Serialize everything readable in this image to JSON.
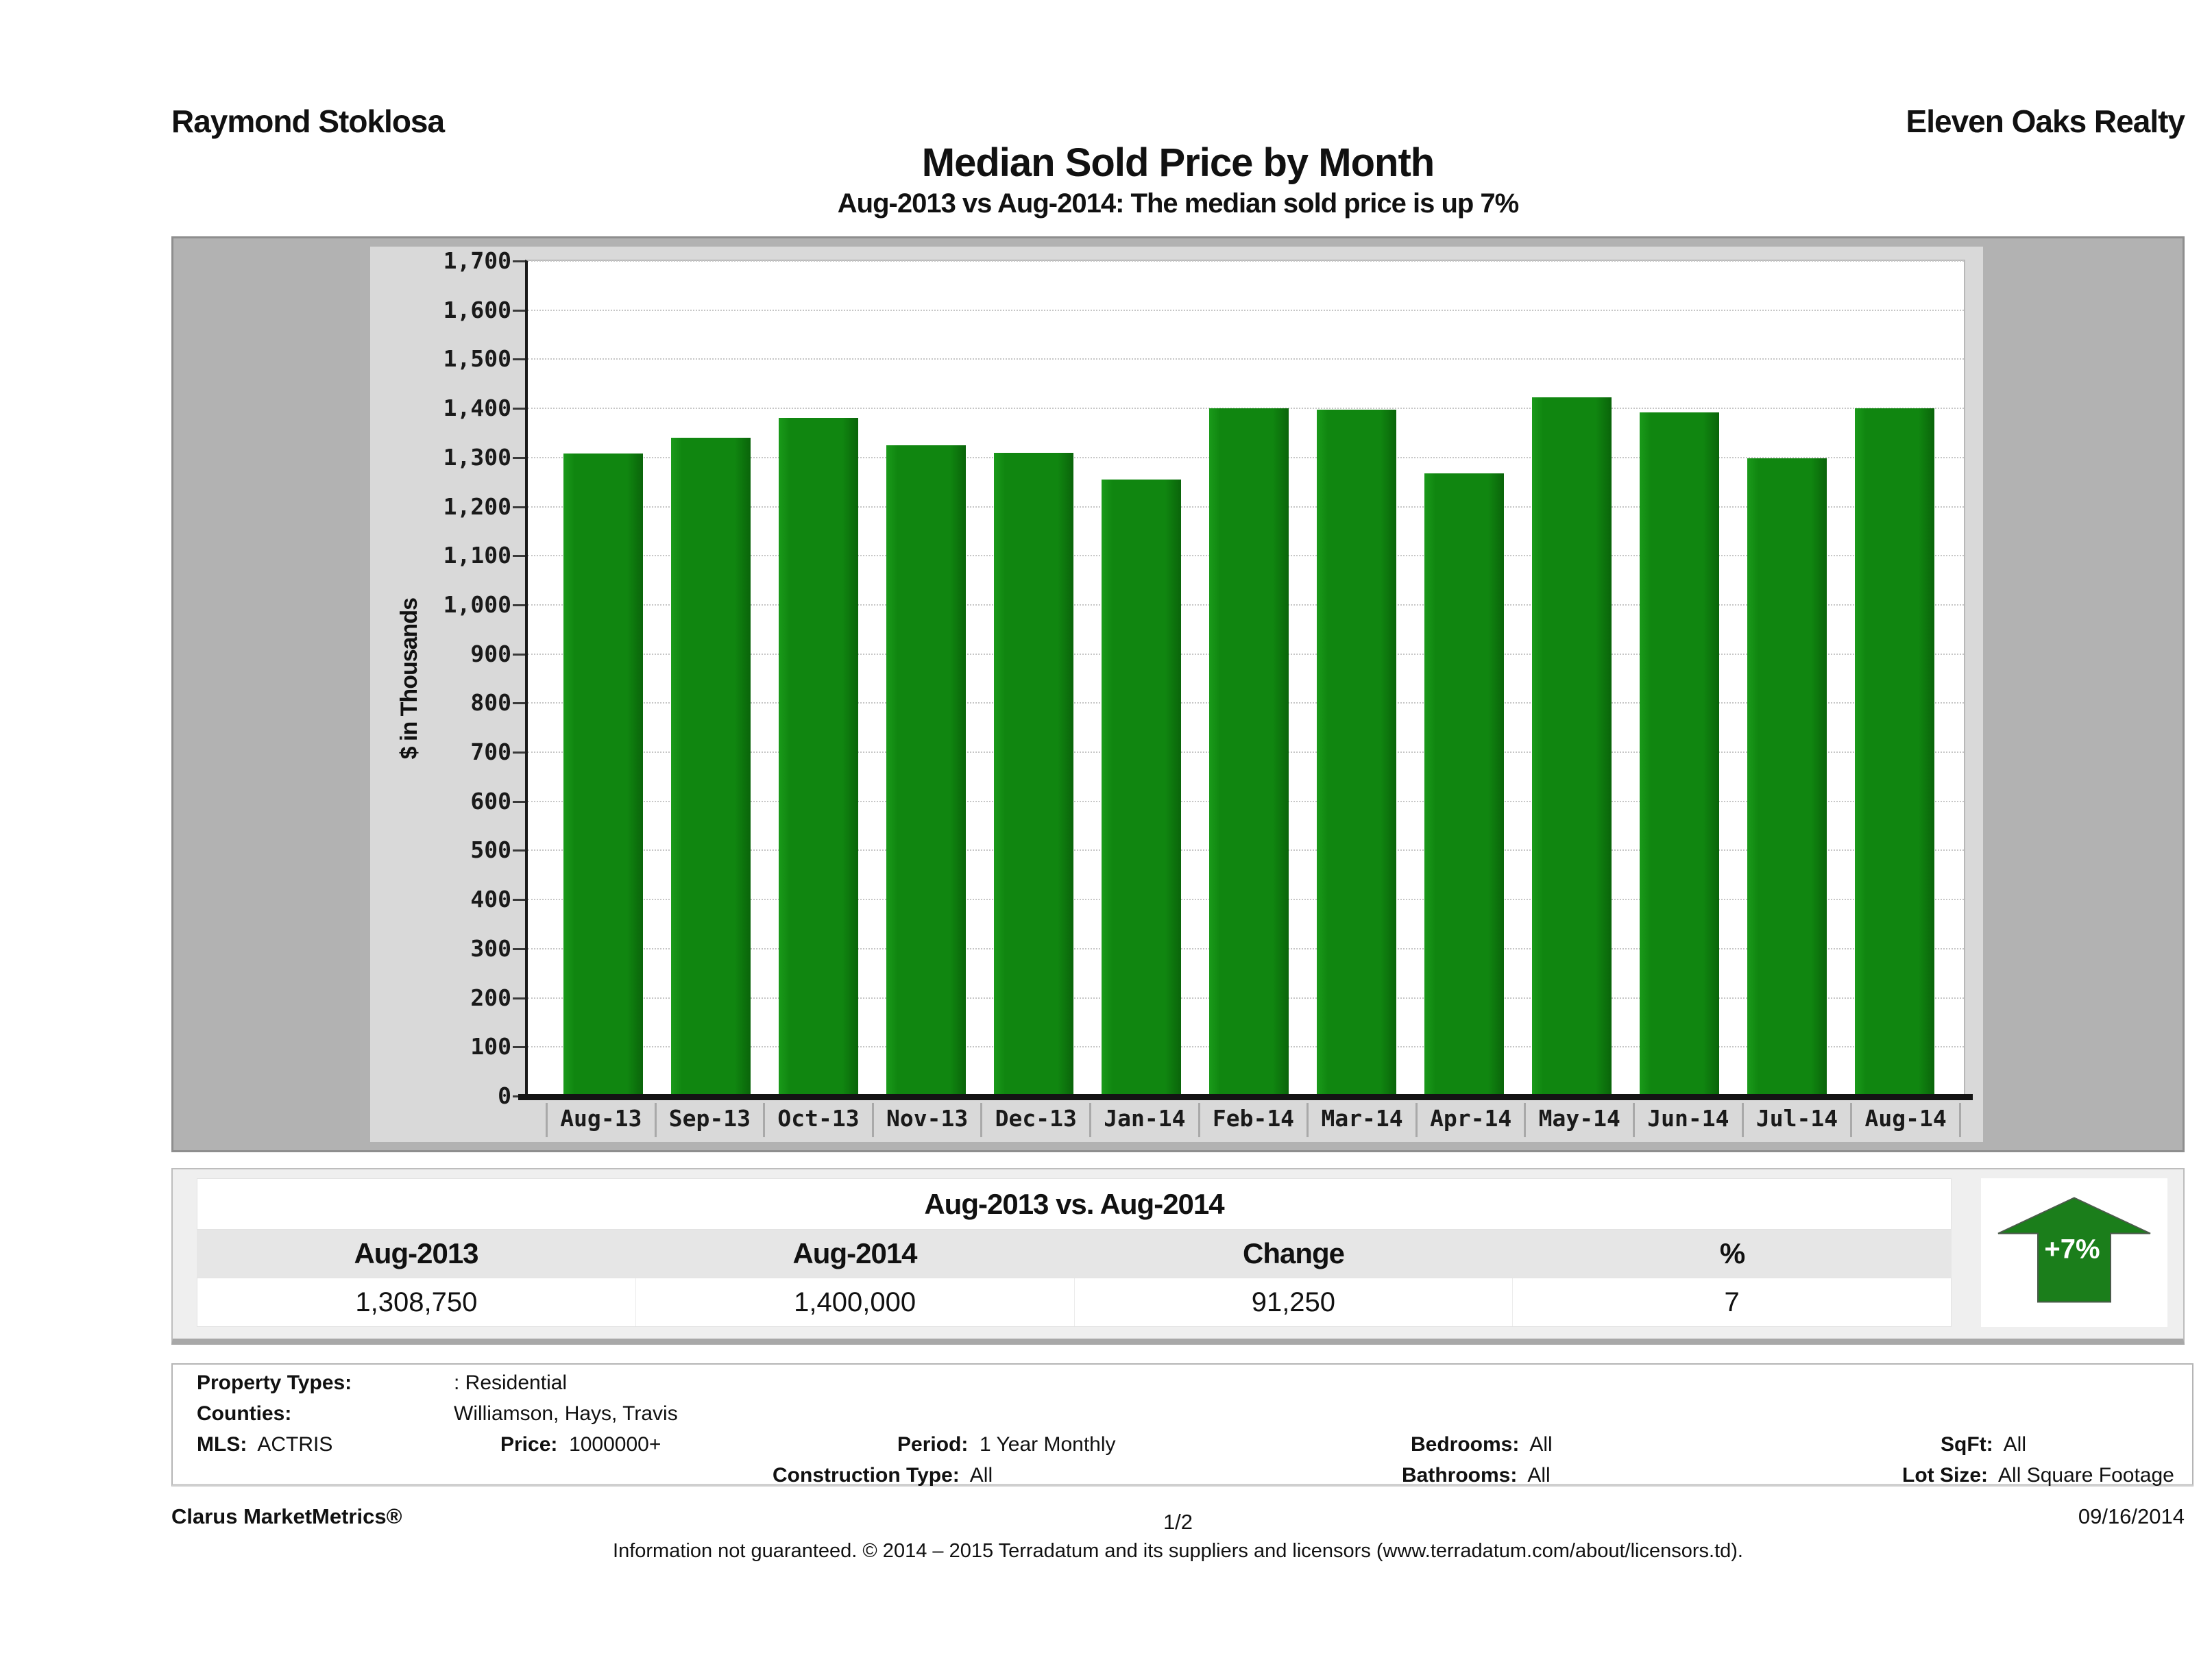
{
  "header": {
    "agent_name": "Raymond Stoklosa",
    "company_name": "Eleven Oaks Realty"
  },
  "title": "Median Sold Price by Month",
  "subtitle": "Aug-2013 vs Aug-2014: The median sold price is up 7%",
  "chart_data": {
    "type": "bar",
    "title": "Median Sold Price by Month",
    "xlabel": "",
    "ylabel": "$ in Thousands",
    "ylim": [
      0,
      1700
    ],
    "y_tick_step": 100,
    "y_ticks": [
      "0",
      "100",
      "200",
      "300",
      "400",
      "500",
      "600",
      "700",
      "800",
      "900",
      "1,000",
      "1,100",
      "1,200",
      "1,300",
      "1,400",
      "1,500",
      "1,600",
      "1,700"
    ],
    "grid": "horizontal dotted",
    "legend": "none",
    "bar_color": "#108610",
    "categories": [
      "Aug-13",
      "Sep-13",
      "Oct-13",
      "Nov-13",
      "Dec-13",
      "Jan-14",
      "Feb-14",
      "Mar-14",
      "Apr-14",
      "May-14",
      "Jun-14",
      "Jul-14",
      "Aug-14"
    ],
    "values": [
      1308.75,
      1340,
      1380,
      1325,
      1310,
      1255,
      1400,
      1398,
      1268,
      1422,
      1392,
      1298,
      1400
    ]
  },
  "summary": {
    "title": "Aug-2013 vs. Aug-2014",
    "columns": [
      "Aug-2013",
      "Aug-2014",
      "Change",
      "%"
    ],
    "values": [
      "1,308,750",
      "1,400,000",
      "91,250",
      "7"
    ],
    "badge_label": "+7%",
    "badge_color": "#1b7e1b"
  },
  "filters": {
    "property_types_label": "Property Types:",
    "property_types_value": ": Residential",
    "counties_label": "Counties:",
    "counties_value": "Williamson, Hays, Travis",
    "mls_label": "MLS:",
    "mls_value": "ACTRIS",
    "price_label": "Price:",
    "price_value": "1000000+",
    "period_label": "Period:",
    "period_value": "1 Year Monthly",
    "construction_label": "Construction Type:",
    "construction_value": "All",
    "bedrooms_label": "Bedrooms:",
    "bedrooms_value": "All",
    "bathrooms_label": "Bathrooms:",
    "bathrooms_value": "All",
    "sqft_label": "SqFt:",
    "sqft_value": "All",
    "lot_size_label": "Lot Size:",
    "lot_size_value": "All Square Footage"
  },
  "footer": {
    "brand": "Clarus MarketMetrics®",
    "page_number": "1/2",
    "date": "09/16/2014",
    "disclaimer": "Information not guaranteed. © 2014 – 2015 Terradatum and its suppliers and licensors (www.terradatum.com/about/licensors.td)."
  },
  "colors": {
    "frame_gray": "#b2b2b2",
    "panel_gray": "#d9d9d9",
    "bar_green": "#108610",
    "arrow_green": "#1b7e1b",
    "summary_bg": "#efefef",
    "text": "#111111"
  }
}
